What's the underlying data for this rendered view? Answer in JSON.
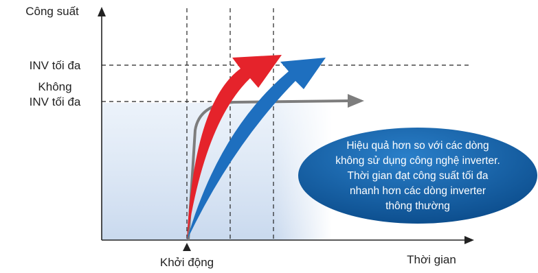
{
  "axis": {
    "y_label": "Công suất",
    "x_label": "Thời gian"
  },
  "levels": [
    {
      "lines": [
        "INV tối đa"
      ]
    },
    {
      "lines": [
        "Không",
        "INV tối đa"
      ]
    }
  ],
  "start_label": "Khởi động",
  "callout": {
    "lines": [
      "Hiệu quả hơn so với các dòng",
      "không sử dụng công nghệ inverter.",
      "Thời gian đạt công suất tối đa",
      "nhanh hơn các dòng inverter",
      "thông thường"
    ]
  }
}
